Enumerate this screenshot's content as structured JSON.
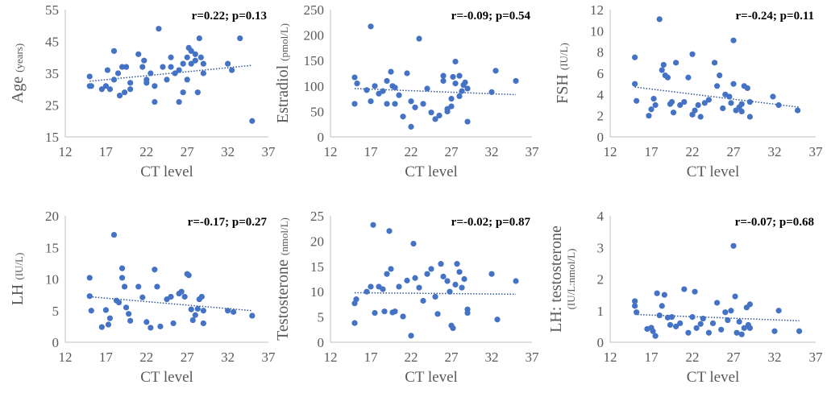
{
  "colors": {
    "point": "#4472c4",
    "trend": "#2f5597",
    "axis": "#bfbfbf",
    "text": "#595959",
    "stat": "#000000"
  },
  "chart_data": [
    {
      "type": "scatter",
      "id": "age",
      "ylabel": "Age",
      "ylabel_sub": "(years)",
      "xlabel": "CT level",
      "stat": "r=0.22; p=0.13",
      "xlim": [
        12,
        37
      ],
      "xticks": [
        12,
        17,
        22,
        27,
        32,
        37
      ],
      "ylim": [
        15,
        55
      ],
      "yticks": [
        15,
        25,
        35,
        45,
        55
      ],
      "trend": [
        [
          15,
          32.5
        ],
        [
          35,
          37.5
        ]
      ],
      "points": [
        [
          15,
          31
        ],
        [
          15,
          34
        ],
        [
          15.2,
          31
        ],
        [
          16.5,
          30
        ],
        [
          17,
          31
        ],
        [
          17.2,
          36
        ],
        [
          17.5,
          30
        ],
        [
          18,
          42
        ],
        [
          18,
          33
        ],
        [
          18.5,
          35
        ],
        [
          18.7,
          28
        ],
        [
          19,
          37
        ],
        [
          19.3,
          29
        ],
        [
          19.5,
          37
        ],
        [
          20,
          32
        ],
        [
          20,
          30
        ],
        [
          21,
          41
        ],
        [
          21.5,
          37
        ],
        [
          21.7,
          39
        ],
        [
          22,
          33
        ],
        [
          22,
          32
        ],
        [
          22.5,
          35
        ],
        [
          23,
          31
        ],
        [
          23,
          26
        ],
        [
          23.5,
          49
        ],
        [
          24,
          37
        ],
        [
          24.5,
          33
        ],
        [
          25,
          37
        ],
        [
          25,
          40
        ],
        [
          25.5,
          35
        ],
        [
          26,
          36
        ],
        [
          26,
          26
        ],
        [
          26.5,
          38
        ],
        [
          26.5,
          29
        ],
        [
          27,
          40
        ],
        [
          27,
          33
        ],
        [
          27.2,
          43
        ],
        [
          27.5,
          38
        ],
        [
          27.5,
          42
        ],
        [
          28,
          41
        ],
        [
          28,
          39
        ],
        [
          28.3,
          29
        ],
        [
          28.5,
          46
        ],
        [
          28.7,
          40
        ],
        [
          29,
          38
        ],
        [
          29,
          35
        ],
        [
          32,
          38
        ],
        [
          32.5,
          36
        ],
        [
          33.5,
          46
        ],
        [
          35,
          20
        ]
      ]
    },
    {
      "type": "scatter",
      "id": "estradiol",
      "ylabel": "Estradiol",
      "ylabel_sub": "(pmol/L)",
      "xlabel": "CT level",
      "stat": "r=-0.09; p=0.54",
      "xlim": [
        12,
        37
      ],
      "xticks": [
        12,
        17,
        22,
        27,
        32,
        37
      ],
      "ylim": [
        0,
        250
      ],
      "yticks": [
        0,
        50,
        100,
        150,
        200,
        250
      ],
      "trend": [
        [
          15,
          95
        ],
        [
          35,
          83
        ]
      ],
      "points": [
        [
          15,
          117
        ],
        [
          15,
          65
        ],
        [
          15.3,
          105
        ],
        [
          16.5,
          92
        ],
        [
          17,
          217
        ],
        [
          17,
          70
        ],
        [
          17.5,
          100
        ],
        [
          18,
          85
        ],
        [
          18.5,
          90
        ],
        [
          19,
          110
        ],
        [
          19,
          65
        ],
        [
          19.5,
          128
        ],
        [
          19.7,
          100
        ],
        [
          20,
          97
        ],
        [
          20,
          65
        ],
        [
          20.5,
          82
        ],
        [
          21,
          40
        ],
        [
          21.5,
          125
        ],
        [
          22,
          70
        ],
        [
          22,
          20
        ],
        [
          22.5,
          58
        ],
        [
          23,
          193
        ],
        [
          23.5,
          65
        ],
        [
          24,
          95
        ],
        [
          24.5,
          48
        ],
        [
          25,
          35
        ],
        [
          25.5,
          42
        ],
        [
          26,
          110
        ],
        [
          26,
          120
        ],
        [
          26.5,
          55
        ],
        [
          26.5,
          50
        ],
        [
          27,
          75
        ],
        [
          27,
          60
        ],
        [
          27.2,
          118
        ],
        [
          27.5,
          148
        ],
        [
          27.5,
          105
        ],
        [
          28,
          120
        ],
        [
          28,
          80
        ],
        [
          28.3,
          90
        ],
        [
          28.5,
          102
        ],
        [
          28.7,
          107
        ],
        [
          29,
          95
        ],
        [
          29,
          30
        ],
        [
          32,
          88
        ],
        [
          32.5,
          130
        ],
        [
          35,
          110
        ]
      ]
    },
    {
      "type": "scatter",
      "id": "fsh",
      "ylabel": "FSH",
      "ylabel_sub": "(IU/L)",
      "xlabel": "CT level",
      "stat": "r=-0.24; p=0.11",
      "xlim": [
        12,
        37
      ],
      "xticks": [
        12,
        17,
        22,
        27,
        32,
        37
      ],
      "ylim": [
        0,
        12
      ],
      "yticks": [
        0,
        2,
        4,
        6,
        8,
        10,
        12
      ],
      "trend": [
        [
          15,
          4.7
        ],
        [
          35,
          2.8
        ]
      ],
      "points": [
        [
          15,
          7.5
        ],
        [
          15,
          5
        ],
        [
          15.2,
          3.4
        ],
        [
          16.7,
          2
        ],
        [
          17,
          2.6
        ],
        [
          17.3,
          3.6
        ],
        [
          17.5,
          3
        ],
        [
          18,
          11.1
        ],
        [
          18.3,
          6.3
        ],
        [
          18.5,
          6.8
        ],
        [
          18.7,
          5.8
        ],
        [
          19,
          5.6
        ],
        [
          19.3,
          3.1
        ],
        [
          19.5,
          3.3
        ],
        [
          19.7,
          2.3
        ],
        [
          20,
          7
        ],
        [
          20.5,
          3
        ],
        [
          21,
          3.3
        ],
        [
          21.5,
          5.6
        ],
        [
          22,
          7.8
        ],
        [
          22,
          2.1
        ],
        [
          22.3,
          2.5
        ],
        [
          22.7,
          3
        ],
        [
          23,
          1.9
        ],
        [
          23.5,
          3.2
        ],
        [
          24,
          3.5
        ],
        [
          24.7,
          7
        ],
        [
          25,
          4.8
        ],
        [
          25.3,
          5.8
        ],
        [
          25.7,
          2.7
        ],
        [
          26,
          4
        ],
        [
          26.5,
          3.8
        ],
        [
          26.7,
          3.2
        ],
        [
          27,
          9.1
        ],
        [
          27,
          5
        ],
        [
          27.3,
          2.5
        ],
        [
          27.7,
          2.8
        ],
        [
          28,
          2.4
        ],
        [
          28,
          3.1
        ],
        [
          28.3,
          4.8
        ],
        [
          28.7,
          4.6
        ],
        [
          29,
          3.3
        ],
        [
          29,
          1.9
        ],
        [
          31.8,
          3.8
        ],
        [
          32.5,
          3
        ],
        [
          34.8,
          2.5
        ]
      ]
    },
    {
      "type": "scatter",
      "id": "lh",
      "ylabel": "LH",
      "ylabel_sub": "(IU/L)",
      "xlabel": "CT level",
      "stat": "r=-0.17; p=0.27",
      "xlim": [
        12,
        37
      ],
      "xticks": [
        12,
        17,
        22,
        27,
        32,
        37
      ],
      "ylim": [
        0,
        20
      ],
      "yticks": [
        0,
        5,
        10,
        15,
        20
      ],
      "trend": [
        [
          15,
          7.2
        ],
        [
          35,
          5.0
        ]
      ],
      "points": [
        [
          15,
          10.2
        ],
        [
          15,
          7.3
        ],
        [
          15.2,
          5
        ],
        [
          16.5,
          2.4
        ],
        [
          17,
          5.1
        ],
        [
          17.3,
          2.8
        ],
        [
          17.5,
          3.8
        ],
        [
          18,
          17
        ],
        [
          18.3,
          6.6
        ],
        [
          18.6,
          6.3
        ],
        [
          19,
          11.7
        ],
        [
          19,
          10.2
        ],
        [
          19.3,
          8.8
        ],
        [
          19.5,
          5.5
        ],
        [
          19.8,
          4.5
        ],
        [
          20,
          3.4
        ],
        [
          21,
          8.8
        ],
        [
          21.5,
          7.1
        ],
        [
          22,
          3.2
        ],
        [
          22.5,
          2.3
        ],
        [
          23,
          11.5
        ],
        [
          23.3,
          8.8
        ],
        [
          23.7,
          2.5
        ],
        [
          24.5,
          6.8
        ],
        [
          25,
          7.2
        ],
        [
          25.3,
          3
        ],
        [
          26,
          7.7
        ],
        [
          26.3,
          8
        ],
        [
          26.7,
          7.2
        ],
        [
          27,
          10.8
        ],
        [
          27.2,
          10.6
        ],
        [
          27.5,
          5.2
        ],
        [
          27.7,
          3.5
        ],
        [
          28,
          4.3
        ],
        [
          28.3,
          5.3
        ],
        [
          28.5,
          6.8
        ],
        [
          28.8,
          7.2
        ],
        [
          29,
          5
        ],
        [
          29,
          3
        ],
        [
          32,
          5
        ],
        [
          32.7,
          4.8
        ],
        [
          35,
          4.2
        ]
      ]
    },
    {
      "type": "scatter",
      "id": "testosterone",
      "ylabel": "Testosterone",
      "ylabel_sub": "(nmol/L)",
      "xlabel": "CT level",
      "stat": "r=-0.02; p=0.87",
      "xlim": [
        12,
        37
      ],
      "xticks": [
        12,
        17,
        22,
        27,
        32,
        37
      ],
      "ylim": [
        0,
        25
      ],
      "yticks": [
        0,
        5,
        10,
        15,
        20,
        25
      ],
      "trend": [
        [
          15,
          9.8
        ],
        [
          35,
          9.5
        ]
      ],
      "points": [
        [
          15,
          7.7
        ],
        [
          15,
          3.8
        ],
        [
          15.2,
          8.5
        ],
        [
          16.5,
          10
        ],
        [
          17,
          11
        ],
        [
          17.3,
          23.2
        ],
        [
          17.5,
          5.8
        ],
        [
          18,
          11
        ],
        [
          18.5,
          10.5
        ],
        [
          18.7,
          6.1
        ],
        [
          19,
          13.5
        ],
        [
          19.3,
          22
        ],
        [
          19.5,
          14.5
        ],
        [
          19.7,
          5.9
        ],
        [
          20,
          6.1
        ],
        [
          20.5,
          11
        ],
        [
          21,
          5.1
        ],
        [
          21.5,
          12.2
        ],
        [
          22,
          1.3
        ],
        [
          22.3,
          19.5
        ],
        [
          22.5,
          12.7
        ],
        [
          23,
          10.8
        ],
        [
          23.5,
          8.2
        ],
        [
          24,
          13.5
        ],
        [
          24.5,
          14.5
        ],
        [
          25,
          9
        ],
        [
          25.3,
          5.6
        ],
        [
          25.7,
          15.5
        ],
        [
          26,
          13
        ],
        [
          26.5,
          12.1
        ],
        [
          26.8,
          10
        ],
        [
          27,
          3.3
        ],
        [
          27.2,
          2.8
        ],
        [
          27.5,
          11.4
        ],
        [
          27.7,
          15.5
        ],
        [
          28,
          13.9
        ],
        [
          28.3,
          10.8
        ],
        [
          28.6,
          12.5
        ],
        [
          29,
          6.5
        ],
        [
          29,
          5.8
        ],
        [
          32,
          13.5
        ],
        [
          32.7,
          4.5
        ],
        [
          35,
          12.1
        ]
      ]
    },
    {
      "type": "scatter",
      "id": "lh_testosterone",
      "ylabel": "LH: testosterone",
      "ylabel_sub": "(IU/L:nmol/L)",
      "xlabel": "CT level",
      "stat": "r=-0.07; p=0.68",
      "xlim": [
        12,
        37
      ],
      "xticks": [
        12,
        17,
        22,
        27,
        32,
        37
      ],
      "ylim": [
        0,
        4
      ],
      "yticks": [
        0,
        1,
        2,
        3,
        4
      ],
      "trend": [
        [
          15,
          0.88
        ],
        [
          35,
          0.68
        ]
      ],
      "points": [
        [
          15,
          1.3
        ],
        [
          15,
          1.15
        ],
        [
          15.2,
          0.95
        ],
        [
          16.5,
          0.42
        ],
        [
          17,
          0.46
        ],
        [
          17.2,
          0.35
        ],
        [
          17.5,
          0.2
        ],
        [
          17.7,
          1.55
        ],
        [
          18,
          0.85
        ],
        [
          18.3,
          1.15
        ],
        [
          18.6,
          1.5
        ],
        [
          19,
          0.78
        ],
        [
          19.3,
          0.55
        ],
        [
          19.5,
          0.8
        ],
        [
          20,
          0.5
        ],
        [
          20.5,
          0.6
        ],
        [
          21,
          1.68
        ],
        [
          21.5,
          0.3
        ],
        [
          22,
          0.8
        ],
        [
          22.3,
          1.6
        ],
        [
          22.5,
          0.45
        ],
        [
          23,
          0.58
        ],
        [
          23.3,
          0.75
        ],
        [
          24,
          0.3
        ],
        [
          24.5,
          0.6
        ],
        [
          25,
          1.25
        ],
        [
          25.5,
          0.4
        ],
        [
          26,
          0.95
        ],
        [
          26.3,
          0.7
        ],
        [
          26.7,
          1.0
        ],
        [
          27,
          3.05
        ],
        [
          27.2,
          1.45
        ],
        [
          27.4,
          0.3
        ],
        [
          27.7,
          0.65
        ],
        [
          28,
          0.25
        ],
        [
          28.3,
          0.45
        ],
        [
          28.6,
          1.1
        ],
        [
          28.8,
          0.55
        ],
        [
          29,
          0.45
        ],
        [
          29,
          1.2
        ],
        [
          32,
          0.35
        ],
        [
          32.5,
          1.0
        ],
        [
          35,
          0.35
        ]
      ]
    }
  ]
}
